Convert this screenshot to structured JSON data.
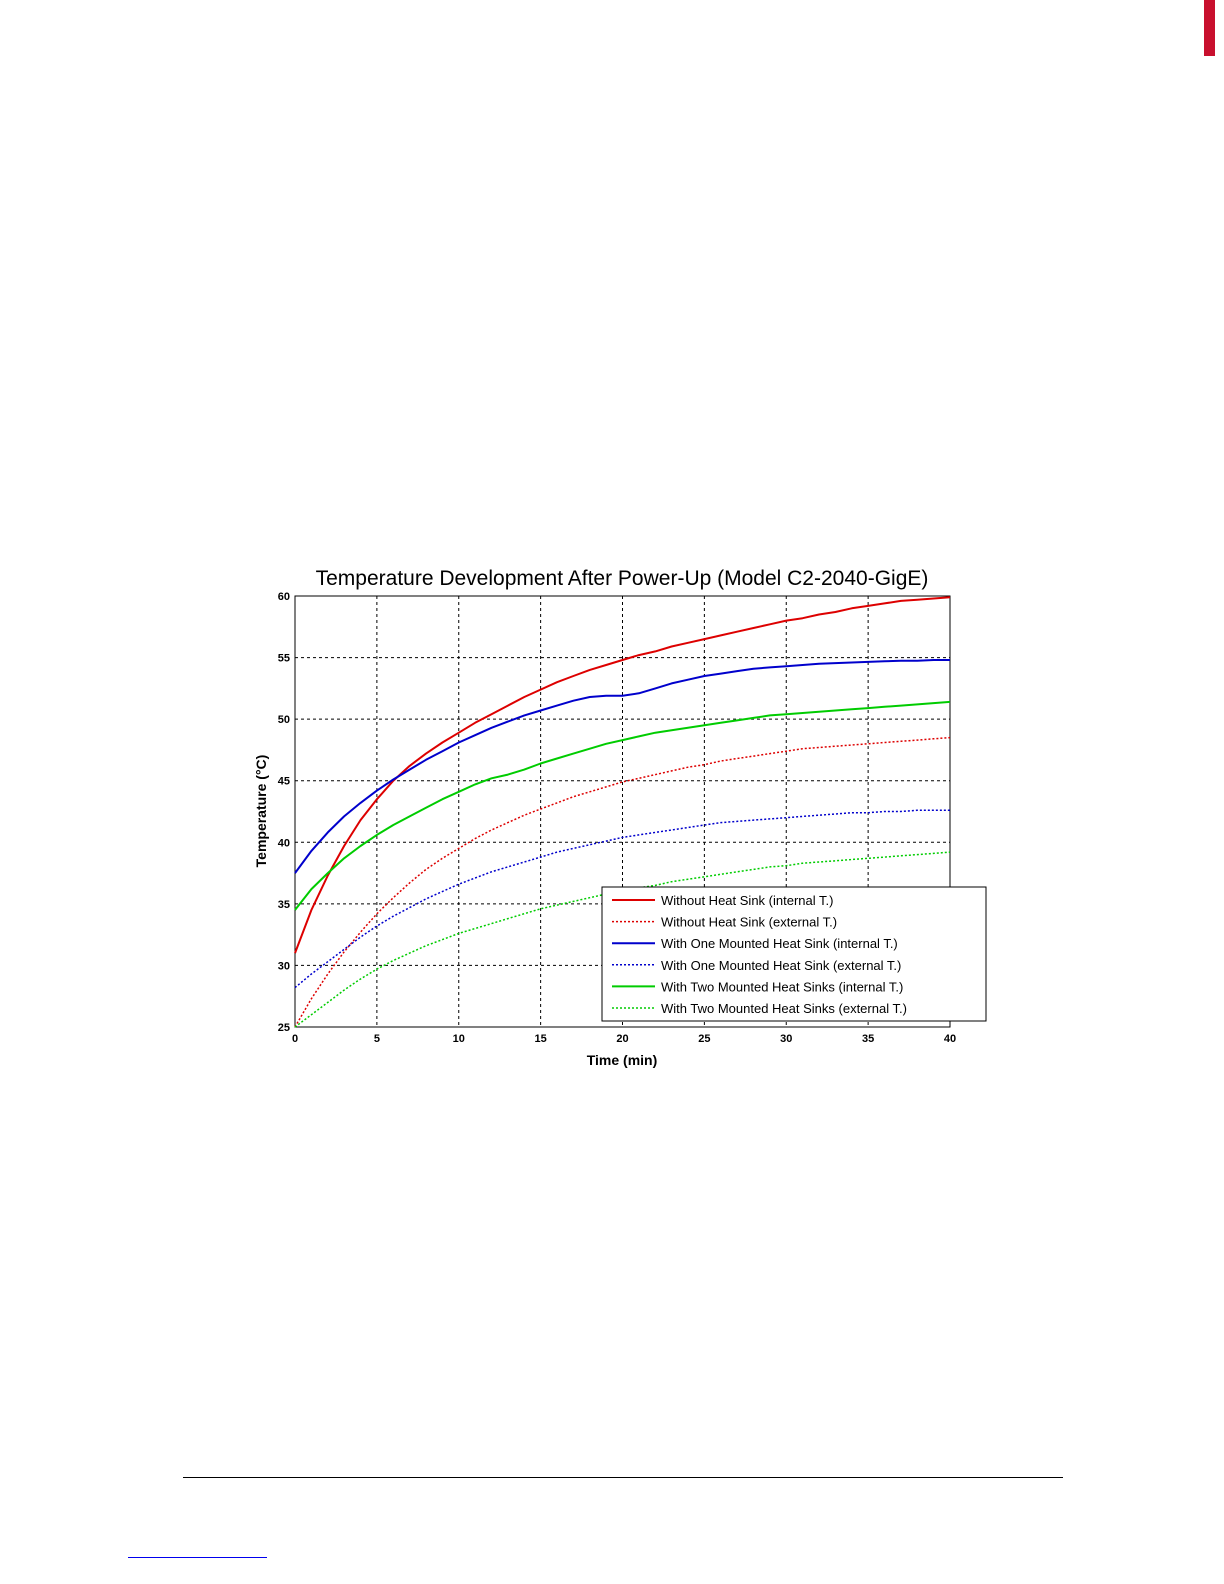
{
  "chart_data": {
    "type": "line",
    "title": "Temperature Development After Power-Up (Model C2-2040-GigE)",
    "xlabel": "Time (min)",
    "ylabel": "Temperature (°C)",
    "xlim": [
      0,
      40
    ],
    "ylim": [
      25,
      60
    ],
    "xticks": [
      "0",
      "5",
      "10",
      "15",
      "20",
      "25",
      "30",
      "35",
      "40"
    ],
    "yticks": [
      "25",
      "30",
      "35",
      "40",
      "45",
      "50",
      "55",
      "60"
    ],
    "grid": true,
    "legend_position": "bottom-right",
    "x": [
      0,
      1,
      2,
      3,
      4,
      5,
      6,
      7,
      8,
      9,
      10,
      11,
      12,
      13,
      14,
      15,
      16,
      17,
      18,
      19,
      20,
      21,
      22,
      23,
      24,
      25,
      26,
      27,
      28,
      29,
      30,
      31,
      32,
      33,
      34,
      35,
      36,
      37,
      38,
      39,
      40
    ],
    "series": [
      {
        "name": "Without Heat Sink (internal T.)",
        "color": "#dd0000",
        "dash": "solid",
        "values": [
          31.0,
          34.5,
          37.3,
          39.7,
          41.8,
          43.5,
          45.0,
          46.2,
          47.2,
          48.1,
          48.9,
          49.7,
          50.4,
          51.1,
          51.8,
          52.4,
          53.0,
          53.5,
          54.0,
          54.4,
          54.8,
          55.2,
          55.5,
          55.9,
          56.2,
          56.5,
          56.8,
          57.1,
          57.4,
          57.7,
          58.0,
          58.2,
          58.5,
          58.7,
          59.0,
          59.2,
          59.4,
          59.6,
          59.7,
          59.8,
          59.9
        ]
      },
      {
        "name": "Without Heat Sink (external T.)",
        "color": "#dd0000",
        "dash": "dotted",
        "values": [
          25.0,
          27.3,
          29.3,
          31.1,
          32.7,
          34.2,
          35.5,
          36.7,
          37.8,
          38.7,
          39.5,
          40.3,
          41.0,
          41.6,
          42.2,
          42.7,
          43.2,
          43.7,
          44.1,
          44.5,
          44.9,
          45.2,
          45.5,
          45.8,
          46.1,
          46.3,
          46.6,
          46.8,
          47.0,
          47.2,
          47.4,
          47.6,
          47.7,
          47.8,
          47.9,
          48.0,
          48.1,
          48.2,
          48.3,
          48.4,
          48.5
        ]
      },
      {
        "name": "With One Mounted Heat Sink (internal T.)",
        "color": "#0000cc",
        "dash": "solid",
        "values": [
          37.5,
          39.3,
          40.8,
          42.1,
          43.2,
          44.2,
          45.1,
          45.9,
          46.7,
          47.4,
          48.1,
          48.7,
          49.3,
          49.8,
          50.3,
          50.7,
          51.1,
          51.5,
          51.8,
          51.9,
          51.9,
          52.1,
          52.5,
          52.9,
          53.2,
          53.5,
          53.7,
          53.9,
          54.1,
          54.2,
          54.3,
          54.4,
          54.5,
          54.55,
          54.6,
          54.65,
          54.7,
          54.75,
          54.75,
          54.8,
          54.8
        ]
      },
      {
        "name": "With One Mounted Heat Sink (external T.)",
        "color": "#0000cc",
        "dash": "dotted",
        "values": [
          28.2,
          29.3,
          30.3,
          31.3,
          32.3,
          33.2,
          34.0,
          34.7,
          35.4,
          36.0,
          36.6,
          37.1,
          37.6,
          38.0,
          38.4,
          38.8,
          39.2,
          39.5,
          39.8,
          40.1,
          40.4,
          40.6,
          40.8,
          41.0,
          41.2,
          41.4,
          41.6,
          41.7,
          41.8,
          41.9,
          42.0,
          42.1,
          42.2,
          42.3,
          42.4,
          42.4,
          42.5,
          42.5,
          42.6,
          42.6,
          42.6
        ]
      },
      {
        "name": "With Two Mounted Heat Sinks (internal T.)",
        "color": "#00cc00",
        "dash": "solid",
        "values": [
          34.5,
          36.2,
          37.5,
          38.7,
          39.7,
          40.6,
          41.4,
          42.1,
          42.8,
          43.5,
          44.1,
          44.7,
          45.2,
          45.5,
          45.9,
          46.4,
          46.8,
          47.2,
          47.6,
          48.0,
          48.3,
          48.6,
          48.9,
          49.1,
          49.3,
          49.5,
          49.7,
          49.9,
          50.1,
          50.3,
          50.4,
          50.5,
          50.6,
          50.7,
          50.8,
          50.9,
          51.0,
          51.1,
          51.2,
          51.3,
          51.4
        ]
      },
      {
        "name": "With Two Mounted Heat Sinks (external T.)",
        "color": "#00cc00",
        "dash": "dotted",
        "values": [
          25.0,
          26.0,
          27.0,
          28.0,
          28.9,
          29.7,
          30.4,
          31.0,
          31.6,
          32.1,
          32.6,
          33.0,
          33.4,
          33.8,
          34.2,
          34.6,
          34.9,
          35.2,
          35.5,
          35.8,
          36.1,
          36.3,
          36.5,
          36.8,
          37.0,
          37.2,
          37.4,
          37.6,
          37.8,
          38.0,
          38.1,
          38.3,
          38.4,
          38.5,
          38.6,
          38.7,
          38.8,
          38.9,
          39.0,
          39.1,
          39.2
        ]
      }
    ]
  }
}
